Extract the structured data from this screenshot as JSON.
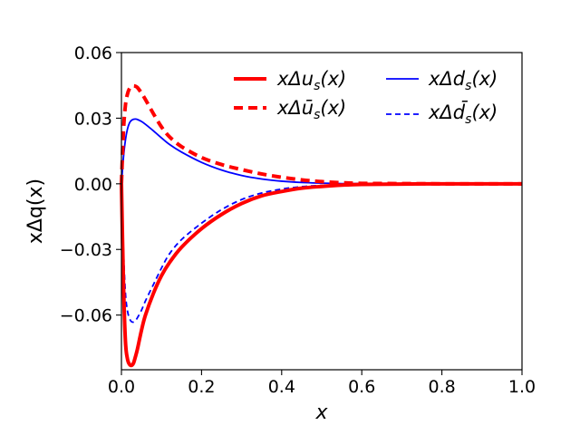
{
  "chart_data": {
    "type": "line",
    "xlabel": "x",
    "ylabel": "xΔq(x)",
    "xlim": [
      0.0,
      1.0
    ],
    "ylim": [
      -0.085,
      0.06
    ],
    "xticks": [
      0.0,
      0.2,
      0.4,
      0.6,
      0.8,
      1.0
    ],
    "xtick_labels": [
      "0.0",
      "0.2",
      "0.4",
      "0.6",
      "0.8",
      "1.0"
    ],
    "yticks": [
      0.06,
      0.03,
      0.0,
      -0.03,
      -0.06
    ],
    "ytick_labels": [
      "0.06",
      "0.03",
      "0.00",
      "−0.03",
      "−0.06"
    ],
    "grid": false,
    "legend_position": "top-right",
    "legend_columns": 2,
    "series": [
      {
        "name": "xΔu_s(x)",
        "legend": "xΔus(x)",
        "color": "#ff0000",
        "dash": "solid",
        "width": "thick",
        "x": [
          0.0,
          0.005,
          0.01,
          0.015,
          0.02,
          0.025,
          0.03,
          0.035,
          0.04,
          0.05,
          0.06,
          0.08,
          0.1,
          0.12,
          0.15,
          0.2,
          0.25,
          0.3,
          0.35,
          0.4,
          0.45,
          0.5,
          0.55,
          0.6,
          0.7,
          0.8,
          0.9,
          1.0
        ],
        "y": [
          0.0,
          -0.045,
          -0.072,
          -0.08,
          -0.0825,
          -0.083,
          -0.082,
          -0.079,
          -0.0755,
          -0.067,
          -0.06,
          -0.05,
          -0.042,
          -0.036,
          -0.029,
          -0.0205,
          -0.014,
          -0.009,
          -0.0055,
          -0.0035,
          -0.002,
          -0.0012,
          -0.0006,
          -0.0003,
          -0.0001,
          0.0,
          0.0,
          0.0
        ]
      },
      {
        "name": "xΔū_s(x)",
        "legend": "xΔūs(x)",
        "color": "#ff0000",
        "dash": "dashed",
        "width": "thick",
        "x": [
          0.0,
          0.005,
          0.01,
          0.015,
          0.02,
          0.025,
          0.03,
          0.035,
          0.04,
          0.05,
          0.06,
          0.08,
          0.1,
          0.12,
          0.15,
          0.2,
          0.25,
          0.3,
          0.35,
          0.4,
          0.45,
          0.5,
          0.55,
          0.6,
          0.7,
          0.8,
          0.9,
          1.0
        ],
        "y": [
          0.0,
          0.024,
          0.036,
          0.041,
          0.0435,
          0.0445,
          0.0448,
          0.0446,
          0.044,
          0.0415,
          0.0385,
          0.032,
          0.026,
          0.0215,
          0.017,
          0.012,
          0.0088,
          0.0065,
          0.0045,
          0.003,
          0.0018,
          0.001,
          0.0005,
          0.0002,
          0.0001,
          0.0,
          0.0,
          0.0
        ]
      },
      {
        "name": "xΔd_s(x)",
        "legend": "xΔds(x)",
        "color": "#0000ff",
        "dash": "solid",
        "width": "thin",
        "x": [
          0.0,
          0.005,
          0.01,
          0.015,
          0.02,
          0.025,
          0.03,
          0.035,
          0.04,
          0.05,
          0.06,
          0.08,
          0.1,
          0.12,
          0.15,
          0.2,
          0.25,
          0.3,
          0.35,
          0.4,
          0.45,
          0.5,
          0.55,
          0.6,
          0.7,
          0.8,
          0.9,
          1.0
        ],
        "y": [
          0.0,
          0.012,
          0.02,
          0.025,
          0.0278,
          0.029,
          0.0295,
          0.0296,
          0.0294,
          0.0285,
          0.0272,
          0.0242,
          0.021,
          0.018,
          0.0145,
          0.0098,
          0.0063,
          0.0038,
          0.0022,
          0.0012,
          0.0006,
          0.0003,
          0.0001,
          0.0001,
          0.0,
          0.0,
          0.0,
          0.0
        ]
      },
      {
        "name": "xΔd̄_s(x)",
        "legend": "xΔd̄s(x)",
        "color": "#0000ff",
        "dash": "dashed",
        "width": "thin",
        "x": [
          0.0,
          0.005,
          0.01,
          0.015,
          0.02,
          0.025,
          0.03,
          0.035,
          0.04,
          0.05,
          0.06,
          0.08,
          0.1,
          0.12,
          0.15,
          0.2,
          0.25,
          0.3,
          0.35,
          0.4,
          0.45,
          0.5,
          0.55,
          0.6,
          0.7,
          0.8,
          0.9,
          1.0
        ],
        "y": [
          0.0,
          -0.03,
          -0.05,
          -0.058,
          -0.0615,
          -0.063,
          -0.0632,
          -0.0625,
          -0.0612,
          -0.0578,
          -0.0535,
          -0.046,
          -0.0385,
          -0.032,
          -0.0255,
          -0.018,
          -0.0118,
          -0.0072,
          -0.0042,
          -0.0024,
          -0.0013,
          -0.0007,
          -0.0003,
          -0.0001,
          0.0,
          0.0,
          0.0,
          0.0
        ]
      }
    ]
  }
}
